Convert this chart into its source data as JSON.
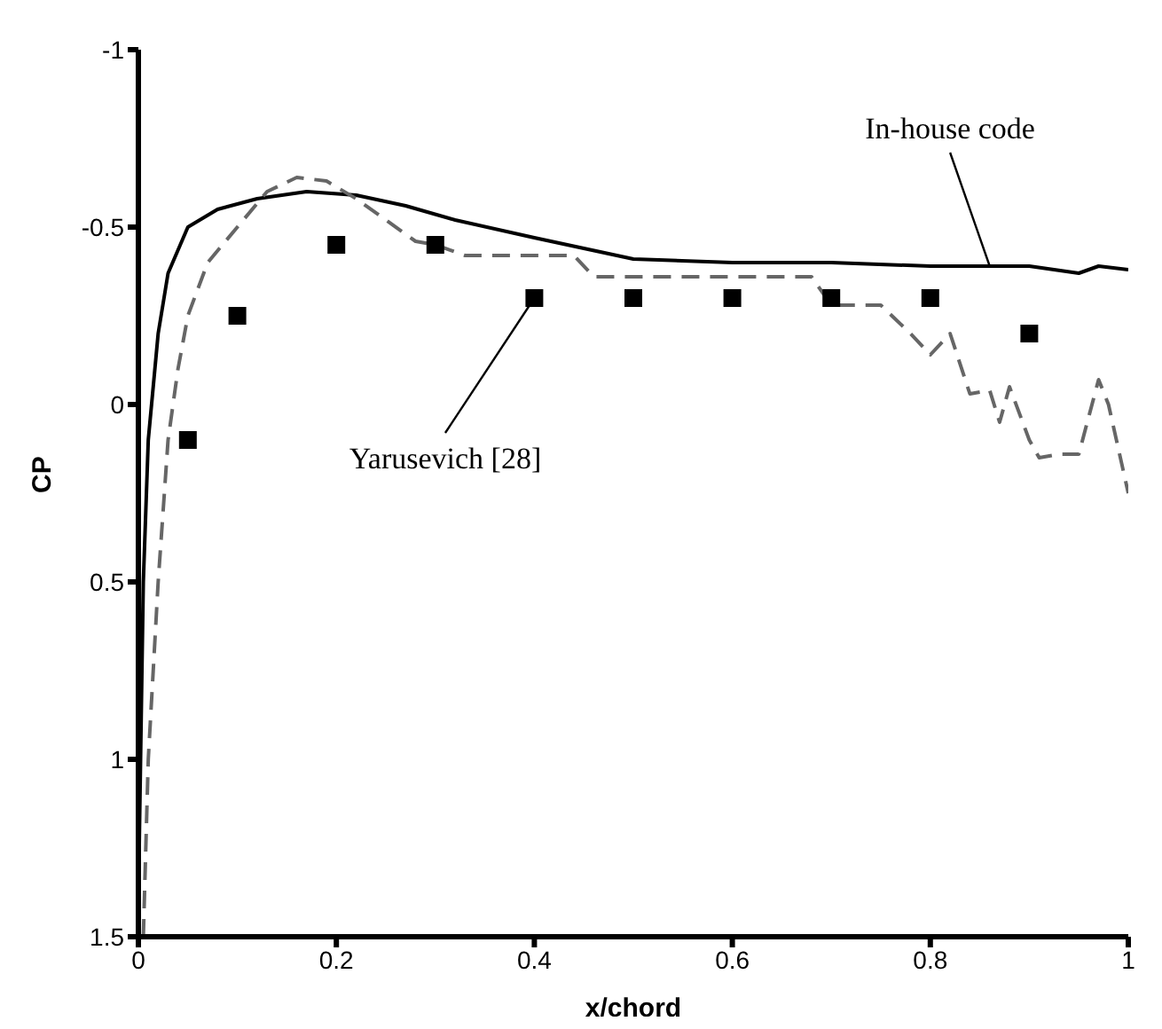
{
  "chart_data": {
    "type": "line",
    "xlabel": "x/chord",
    "ylabel": "CP",
    "xlim": [
      0,
      1
    ],
    "xticks": [
      0,
      0.2,
      0.4,
      0.6,
      0.8,
      1
    ],
    "ylim": [
      1.5,
      -1
    ],
    "yticks": [
      -1,
      -0.5,
      0,
      0.5,
      1,
      1.5
    ],
    "series": [
      {
        "name": null,
        "color": "#000000",
        "line_style": "solid",
        "x": [
          0,
          0.005,
          0.01,
          0.02,
          0.03,
          0.05,
          0.08,
          0.12,
          0.17,
          0.22,
          0.27,
          0.32,
          0.4,
          0.45,
          0.5,
          0.6,
          0.7,
          0.8,
          0.9,
          0.95,
          0.97,
          1.0
        ],
        "values": [
          1.4,
          0.5,
          0.1,
          -0.2,
          -0.37,
          -0.5,
          -0.55,
          -0.58,
          -0.6,
          -0.59,
          -0.56,
          -0.52,
          -0.47,
          -0.44,
          -0.41,
          -0.4,
          -0.4,
          -0.39,
          -0.39,
          -0.37,
          -0.39,
          -0.38
        ]
      },
      {
        "color": "#666666",
        "line_style": "dashed",
        "x": [
          0.005,
          0.01,
          0.02,
          0.03,
          0.04,
          0.05,
          0.07,
          0.1,
          0.13,
          0.16,
          0.19,
          0.22,
          0.25,
          0.28,
          0.3,
          0.33,
          0.36,
          0.4,
          0.44,
          0.46,
          0.5,
          0.6,
          0.68,
          0.7,
          0.75,
          0.78,
          0.8,
          0.82,
          0.84,
          0.86,
          0.87,
          0.88,
          0.9,
          0.91,
          0.93,
          0.95,
          0.97,
          0.98,
          1.0
        ],
        "values": [
          1.5,
          1.0,
          0.5,
          0.1,
          -0.1,
          -0.25,
          -0.4,
          -0.5,
          -0.6,
          -0.64,
          -0.63,
          -0.58,
          -0.52,
          -0.46,
          -0.45,
          -0.42,
          -0.42,
          -0.42,
          -0.42,
          -0.36,
          -0.36,
          -0.36,
          -0.36,
          -0.28,
          -0.28,
          -0.2,
          -0.14,
          -0.2,
          -0.03,
          -0.04,
          0.05,
          -0.05,
          0.1,
          0.15,
          0.14,
          0.14,
          -0.07,
          0,
          0.25
        ]
      },
      {
        "type": "scatter",
        "color": "#000000",
        "marker": "square",
        "x": [
          0.05,
          0.1,
          0.2,
          0.3,
          0.4,
          0.5,
          0.6,
          0.7,
          0.8,
          0.9
        ],
        "values": [
          0.1,
          -0.25,
          -0.45,
          -0.45,
          -0.3,
          -0.3,
          -0.3,
          -0.3,
          -0.3,
          -0.2
        ]
      }
    ],
    "annotations": [
      {
        "text": "In-house code",
        "x": 0.86,
        "y": -0.39
      },
      {
        "text": "Yarusevich [28]",
        "x": 0.4,
        "y": -0.3
      }
    ]
  }
}
